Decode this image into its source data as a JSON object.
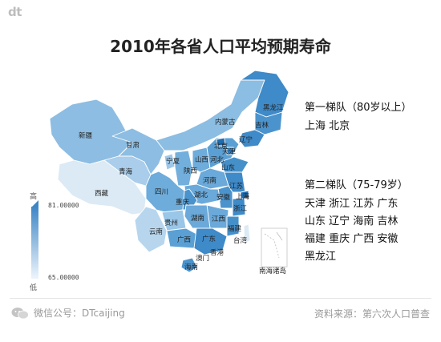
{
  "logo": "dt",
  "title": "2010年各省人口平均预期寿命",
  "legend": {
    "high_label": "高",
    "low_label": "低",
    "max_value": "81.00000",
    "min_value": "65.00000"
  },
  "tier1": {
    "heading": "第一梯队（80岁以上）",
    "provinces": "上海 北京"
  },
  "tier2": {
    "heading": "第二梯队（75-79岁）",
    "line1": "天津 浙江 江苏 广东",
    "line2": "山东 辽宁 海南 吉林",
    "line3": "福建 重庆 广西 安徽",
    "line4": "黑龙江"
  },
  "map_labels": {
    "heilongjiang": "黑龙江",
    "jilin": "吉林",
    "liaoning": "辽宁",
    "neimenggu": "内蒙古",
    "xinjiang": "新疆",
    "xizang": "西藏",
    "qinghai": "青海",
    "gansu": "甘肃",
    "ningxia": "宁夏",
    "shaanxi": "陕西",
    "shanxi": "山西",
    "beijing": "北京",
    "tianjin": "天津",
    "hebei": "河北",
    "shandong": "山东",
    "henan": "河南",
    "jiangsu": "江苏",
    "anhui": "安徽",
    "shanghai": "上海",
    "hubei": "湖北",
    "sichuan": "四川",
    "chongqing": "重庆",
    "zhejiang": "浙江",
    "guizhou": "贵州",
    "hunan": "湖南",
    "jiangxi": "江西",
    "fujian": "福建",
    "yunnan": "云南",
    "guangxi": "广西",
    "guangdong": "广东",
    "taiwan": "台湾",
    "xianggang": "香港",
    "aomen": "澳门",
    "hainan": "海南",
    "nanhai": "南海诸岛"
  },
  "footer": {
    "wechat": "微信公号：DTcaijing",
    "source": "资料来源：第六次人口普查"
  },
  "colors": {
    "low": "#d6e8f5",
    "mid": "#9ec7e6",
    "high": "#5aa0d4",
    "top": "#2f7ec0"
  }
}
